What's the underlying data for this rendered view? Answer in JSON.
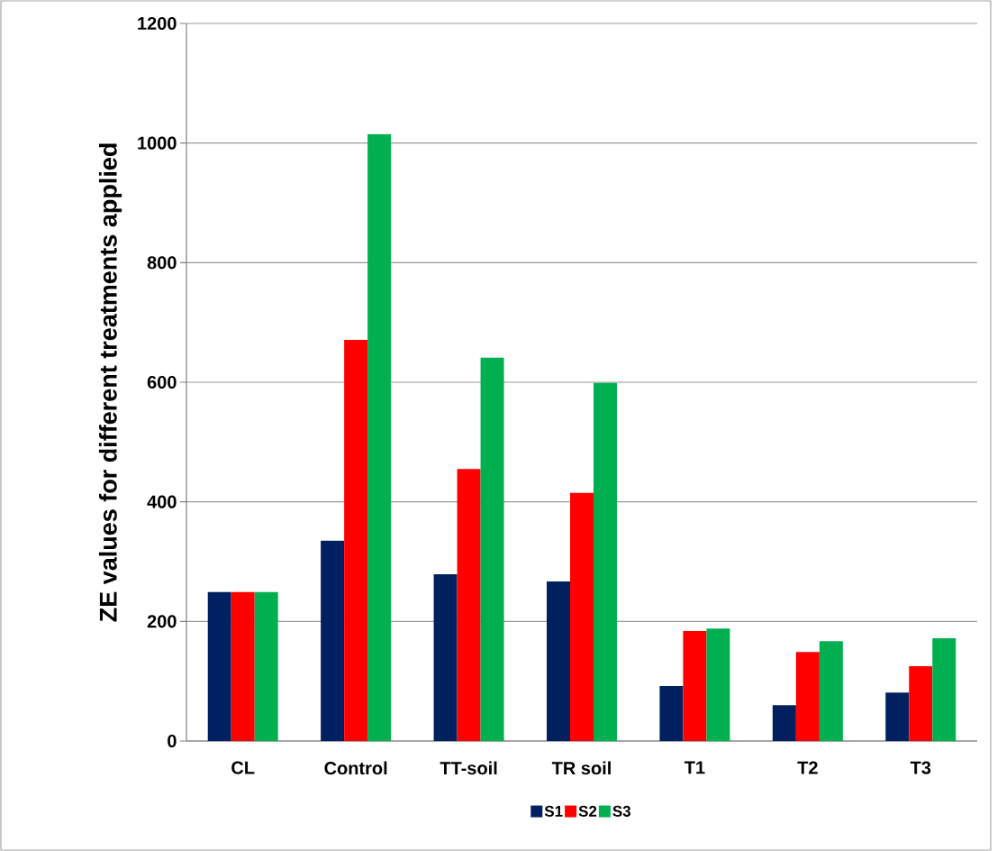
{
  "chart_data": {
    "type": "bar",
    "ylabel": "ZE values for different treatments applied",
    "categories": [
      "CL",
      "Control",
      "TT-soil",
      "TR soil",
      "T1",
      "T2",
      "T3"
    ],
    "series": [
      {
        "name": "S1",
        "color": "#002060",
        "values": [
          249,
          335,
          279,
          267,
          92,
          60,
          81
        ]
      },
      {
        "name": "S2",
        "color": "#ff0000",
        "values": [
          249,
          671,
          455,
          415,
          184,
          149,
          125
        ]
      },
      {
        "name": "S3",
        "color": "#00b050",
        "values": [
          249,
          1015,
          641,
          599,
          188,
          167,
          172
        ]
      }
    ],
    "ylim": [
      0,
      1200
    ],
    "yticks": [
      0,
      200,
      400,
      600,
      800,
      1000,
      1200
    ],
    "grid": "y",
    "legend": "bottom"
  }
}
